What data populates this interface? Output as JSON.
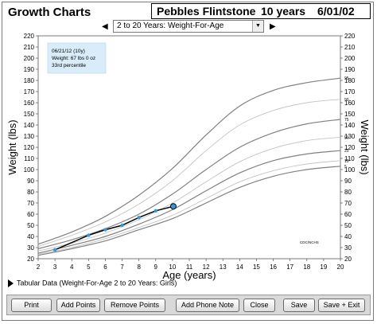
{
  "app": {
    "title": "Growth Charts"
  },
  "patient": {
    "name": "Pebbles Flintstone",
    "age": "10 years",
    "dob": "6/01/02"
  },
  "chart_selector": {
    "selected": "2 to 20 Years: Weight-For-Age"
  },
  "tooltip": {
    "line1": "06/21/12 (10y)",
    "line2": "Weight: 67 lbs 0 oz",
    "line3": "33rd percentile"
  },
  "tabular": {
    "label": "Tabular Data  (Weight-For-Age 2 to 20 Years: Girls)"
  },
  "buttons": {
    "print": "Print",
    "add_points": "Add Points",
    "remove_points": "Remove Points",
    "add_phone_note": "Add Phone Note",
    "close": "Close",
    "save": "Save",
    "save_exit": "Save + Exit"
  },
  "icons": {
    "prev": "triangle-left-icon",
    "next": "triangle-right-icon",
    "dropdown": "chevron-down-icon",
    "expand": "triangle-right-icon"
  },
  "chart_data": {
    "type": "line",
    "xlabel": "Age (years)",
    "ylabel": "Weight (lbs)",
    "xlim": [
      2,
      20
    ],
    "ylim": [
      20,
      220
    ],
    "xticks": [
      2,
      3,
      4,
      5,
      6,
      7,
      8,
      9,
      10,
      11,
      12,
      13,
      14,
      15,
      16,
      17,
      18,
      19,
      20
    ],
    "yticks": [
      20,
      30,
      40,
      50,
      60,
      70,
      80,
      90,
      100,
      110,
      120,
      130,
      140,
      150,
      160,
      170,
      180,
      190,
      200,
      210,
      220
    ],
    "source_label": "CDC/NCHS",
    "grid": false,
    "colors": {
      "percentile_bold": "#808080",
      "percentile_light": "#c4c4c4",
      "patient_line": "#000000",
      "point": "#3399dd",
      "tooltip_bg": "#d9ecfa"
    },
    "percentiles": [
      {
        "name": "95",
        "bold": true,
        "x": [
          2,
          4,
          6,
          8,
          10,
          12,
          14,
          16,
          18,
          20
        ],
        "y": [
          33,
          44,
          58,
          77,
          101,
          131,
          157,
          171,
          178,
          182
        ]
      },
      {
        "name": "90",
        "bold": false,
        "x": [
          2,
          4,
          6,
          8,
          10,
          12,
          14,
          16,
          18,
          20
        ],
        "y": [
          31,
          41,
          53,
          69,
          90,
          117,
          140,
          153,
          160,
          163
        ]
      },
      {
        "name": "75",
        "bold": true,
        "x": [
          2,
          4,
          6,
          8,
          10,
          12,
          14,
          16,
          18,
          20
        ],
        "y": [
          29,
          37,
          47,
          60,
          78,
          100,
          120,
          133,
          141,
          145
        ]
      },
      {
        "name": "50",
        "bold": false,
        "x": [
          2,
          4,
          6,
          8,
          10,
          12,
          14,
          16,
          18,
          20
        ],
        "y": [
          27,
          34,
          43,
          55,
          70,
          89,
          107,
          119,
          126,
          129
        ]
      },
      {
        "name": "25",
        "bold": true,
        "x": [
          2,
          4,
          6,
          8,
          10,
          12,
          14,
          16,
          18,
          20
        ],
        "y": [
          25,
          32,
          40,
          51,
          64,
          81,
          97,
          108,
          114,
          117
        ]
      },
      {
        "name": "10",
        "bold": false,
        "x": [
          2,
          4,
          6,
          8,
          10,
          12,
          14,
          16,
          18,
          20
        ],
        "y": [
          24,
          30,
          38,
          48,
          59,
          74,
          89,
          99,
          105,
          108
        ]
      },
      {
        "name": "5",
        "bold": true,
        "x": [
          2,
          4,
          6,
          8,
          10,
          12,
          14,
          16,
          18,
          20
        ],
        "y": [
          23,
          29,
          36,
          46,
          56,
          70,
          84,
          94,
          100,
          103
        ]
      }
    ],
    "patient_points": {
      "x": [
        3,
        5,
        6,
        7,
        8,
        9,
        10.05
      ],
      "y": [
        28,
        41,
        46,
        50,
        57,
        63,
        67
      ]
    }
  }
}
